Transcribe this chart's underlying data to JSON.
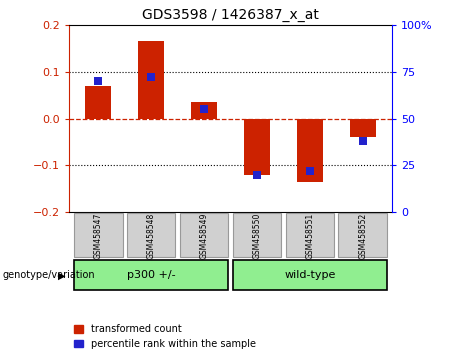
{
  "title": "GDS3598 / 1426387_x_at",
  "samples": [
    "GSM458547",
    "GSM458548",
    "GSM458549",
    "GSM458550",
    "GSM458551",
    "GSM458552"
  ],
  "red_values": [
    0.07,
    0.165,
    0.035,
    -0.12,
    -0.135,
    -0.04
  ],
  "blue_values_pct": [
    70,
    72,
    55,
    20,
    22,
    38
  ],
  "group_label": "genotype/variation",
  "groups": [
    {
      "label": "p300 +/-",
      "start": 0,
      "end": 2
    },
    {
      "label": "wild-type",
      "start": 3,
      "end": 5
    }
  ],
  "ylim": [
    -0.2,
    0.2
  ],
  "y2lim": [
    0,
    100
  ],
  "yticks": [
    -0.2,
    -0.1,
    0.0,
    0.1,
    0.2
  ],
  "y2ticks": [
    0,
    25,
    50,
    75,
    100
  ],
  "y2ticklabels": [
    "0",
    "25",
    "50",
    "75",
    "100%"
  ],
  "red_color": "#cc2200",
  "blue_color": "#2222cc",
  "bar_width": 0.5,
  "grid_color": "#000000",
  "zero_line_color": "#cc2200",
  "legend_red": "transformed count",
  "legend_blue": "percentile rank within the sample",
  "group_bg_color": "#90ee90",
  "sample_bg_color": "#d0d0d0",
  "sample_border_color": "#999999"
}
